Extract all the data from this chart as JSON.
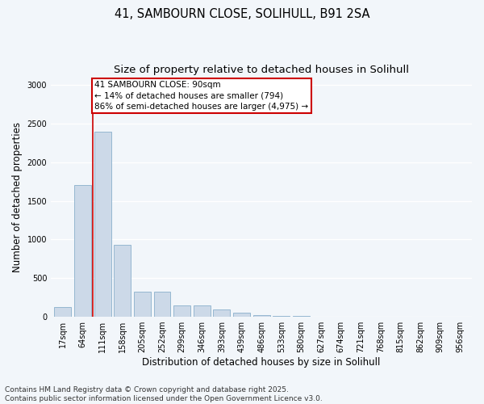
{
  "title_line1": "41, SAMBOURN CLOSE, SOLIHULL, B91 2SA",
  "title_line2": "Size of property relative to detached houses in Solihull",
  "xlabel": "Distribution of detached houses by size in Solihull",
  "ylabel": "Number of detached properties",
  "categories": [
    "17sqm",
    "64sqm",
    "111sqm",
    "158sqm",
    "205sqm",
    "252sqm",
    "299sqm",
    "346sqm",
    "393sqm",
    "439sqm",
    "486sqm",
    "533sqm",
    "580sqm",
    "627sqm",
    "674sqm",
    "721sqm",
    "768sqm",
    "815sqm",
    "862sqm",
    "909sqm",
    "956sqm"
  ],
  "values": [
    130,
    1700,
    2400,
    930,
    330,
    330,
    150,
    150,
    90,
    55,
    25,
    10,
    8,
    4,
    2,
    1,
    0,
    0,
    0,
    0,
    0
  ],
  "bar_color": "#ccd9e8",
  "bar_edge_color": "#8ab0cc",
  "vline_x": 1.5,
  "vline_color": "#cc0000",
  "annotation_text": "41 SAMBOURN CLOSE: 90sqm\n← 14% of detached houses are smaller (794)\n86% of semi-detached houses are larger (4,975) →",
  "box_color": "#ffffff",
  "box_edge_color": "#cc0000",
  "ylim": [
    0,
    3100
  ],
  "yticks": [
    0,
    500,
    1000,
    1500,
    2000,
    2500,
    3000
  ],
  "footer_line1": "Contains HM Land Registry data © Crown copyright and database right 2025.",
  "footer_line2": "Contains public sector information licensed under the Open Government Licence v3.0.",
  "bg_color": "#f2f6fa",
  "plot_bg_color": "#f2f6fa",
  "grid_color": "#ffffff",
  "title_fontsize": 10.5,
  "subtitle_fontsize": 9.5,
  "axis_label_fontsize": 8.5,
  "tick_fontsize": 7,
  "annotation_fontsize": 7.5,
  "footer_fontsize": 6.5
}
